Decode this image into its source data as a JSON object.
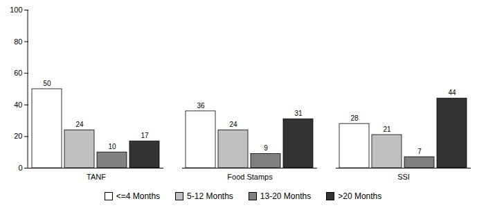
{
  "chart_data": {
    "type": "bar",
    "categories": [
      "TANF",
      "Food Stamps",
      "SSI"
    ],
    "series": [
      {
        "name": "<=4 Months",
        "color": "#ffffff",
        "values": [
          50,
          36,
          28
        ]
      },
      {
        "name": "5-12 Months",
        "color": "#c0c0c0",
        "values": [
          24,
          24,
          21
        ]
      },
      {
        "name": "13-20 Months",
        "color": "#808080",
        "values": [
          10,
          9,
          7
        ]
      },
      {
        "name": ">20 Months",
        "color": "#333333",
        "values": [
          17,
          31,
          44
        ]
      }
    ],
    "ylim": [
      0,
      100
    ],
    "yticks": [
      0,
      20,
      40,
      60,
      80,
      100
    ],
    "grid": false,
    "data_labels": true,
    "legend": "bottom"
  }
}
